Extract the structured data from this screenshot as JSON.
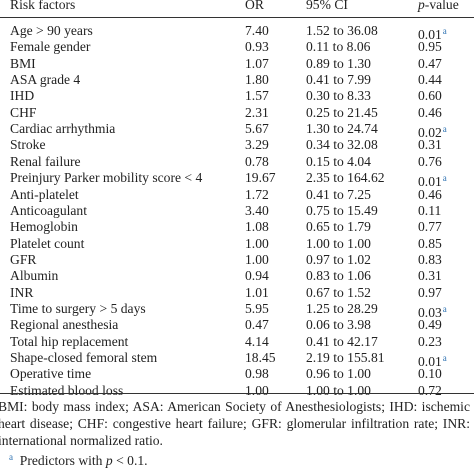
{
  "table": {
    "header": {
      "factor": "Risk factors",
      "or": "OR",
      "ci": "95% CI",
      "p_var": "p",
      "p_rest": "-value"
    },
    "rows": [
      {
        "factor": "Age > 90 years",
        "or": "7.40",
        "ci": "1.52 to 36.08",
        "p": "0.01",
        "note": "a"
      },
      {
        "factor": "Female gender",
        "or": "0.93",
        "ci": "0.11 to 8.06",
        "p": "0.95"
      },
      {
        "factor": "BMI",
        "or": "1.07",
        "ci": "0.89 to 1.30",
        "p": "0.47"
      },
      {
        "factor": "ASA grade 4",
        "or": "1.80",
        "ci": "0.41 to 7.99",
        "p": "0.44"
      },
      {
        "factor": "IHD",
        "or": "1.57",
        "ci": "0.30 to 8.33",
        "p": "0.60"
      },
      {
        "factor": "CHF",
        "or": "2.31",
        "ci": "0.25 to 21.45",
        "p": "0.46"
      },
      {
        "factor": "Cardiac arrhythmia",
        "or": "5.67",
        "ci": "1.30 to 24.74",
        "p": "0.02",
        "note": "a"
      },
      {
        "factor": "Stroke",
        "or": "3.29",
        "ci": "0.34 to 32.08",
        "p": "0.31"
      },
      {
        "factor": "Renal failure",
        "or": "0.78",
        "ci": "0.15 to 4.04",
        "p": "0.76"
      },
      {
        "factor": "Preinjury Parker mobility score < 4",
        "or": "19.67",
        "ci": "2.35 to 164.62",
        "p": "0.01",
        "note": "a"
      },
      {
        "factor": "Anti-platelet",
        "or": "1.72",
        "ci": "0.41 to 7.25",
        "p": "0.46"
      },
      {
        "factor": "Anticoagulant",
        "or": "3.40",
        "ci": "0.75 to 15.49",
        "p": "0.11"
      },
      {
        "factor": "Hemoglobin",
        "or": "1.08",
        "ci": "0.65 to 1.79",
        "p": "0.77"
      },
      {
        "factor": "Platelet count",
        "or": "1.00",
        "ci": "1.00 to 1.00",
        "p": "0.85"
      },
      {
        "factor": "GFR",
        "or": "1.00",
        "ci": "0.97 to 1.02",
        "p": "0.83"
      },
      {
        "factor": "Albumin",
        "or": "0.94",
        "ci": "0.83 to 1.06",
        "p": "0.31"
      },
      {
        "factor": "INR",
        "or": "1.01",
        "ci": "0.67 to 1.52",
        "p": "0.97"
      },
      {
        "factor": "Time to surgery > 5 days",
        "or": "5.95",
        "ci": "1.25 to 28.29",
        "p": "0.03",
        "note": "a"
      },
      {
        "factor": "Regional anesthesia",
        "or": "0.47",
        "ci": "0.06 to 3.98",
        "p": "0.49"
      },
      {
        "factor": "Total hip replacement",
        "or": "4.14",
        "ci": "0.41 to 42.17",
        "p": "0.23"
      },
      {
        "factor": "Shape-closed femoral stem",
        "or": "18.45",
        "ci": "2.19 to 155.81",
        "p": "0.01",
        "note": "a"
      },
      {
        "factor": "Operative time",
        "or": "0.98",
        "ci": "0.96 to 1.00",
        "p": "0.10"
      },
      {
        "factor": "Estimated blood loss",
        "or": "1.00",
        "ci": "1.00 to 1.00",
        "p": "0.72"
      }
    ]
  },
  "footer": {
    "abbreviations": "BMI: body mass index; ASA: American Society of Anesthesiologists; IHD: ischemic heart disease; CHF: congestive heart failure; GFR: glomerular infiltration rate; INR: international normalized ratio.",
    "footnote": {
      "mark": "a",
      "before": "Predictors with",
      "var": "p",
      "after": "< 0.1."
    }
  }
}
